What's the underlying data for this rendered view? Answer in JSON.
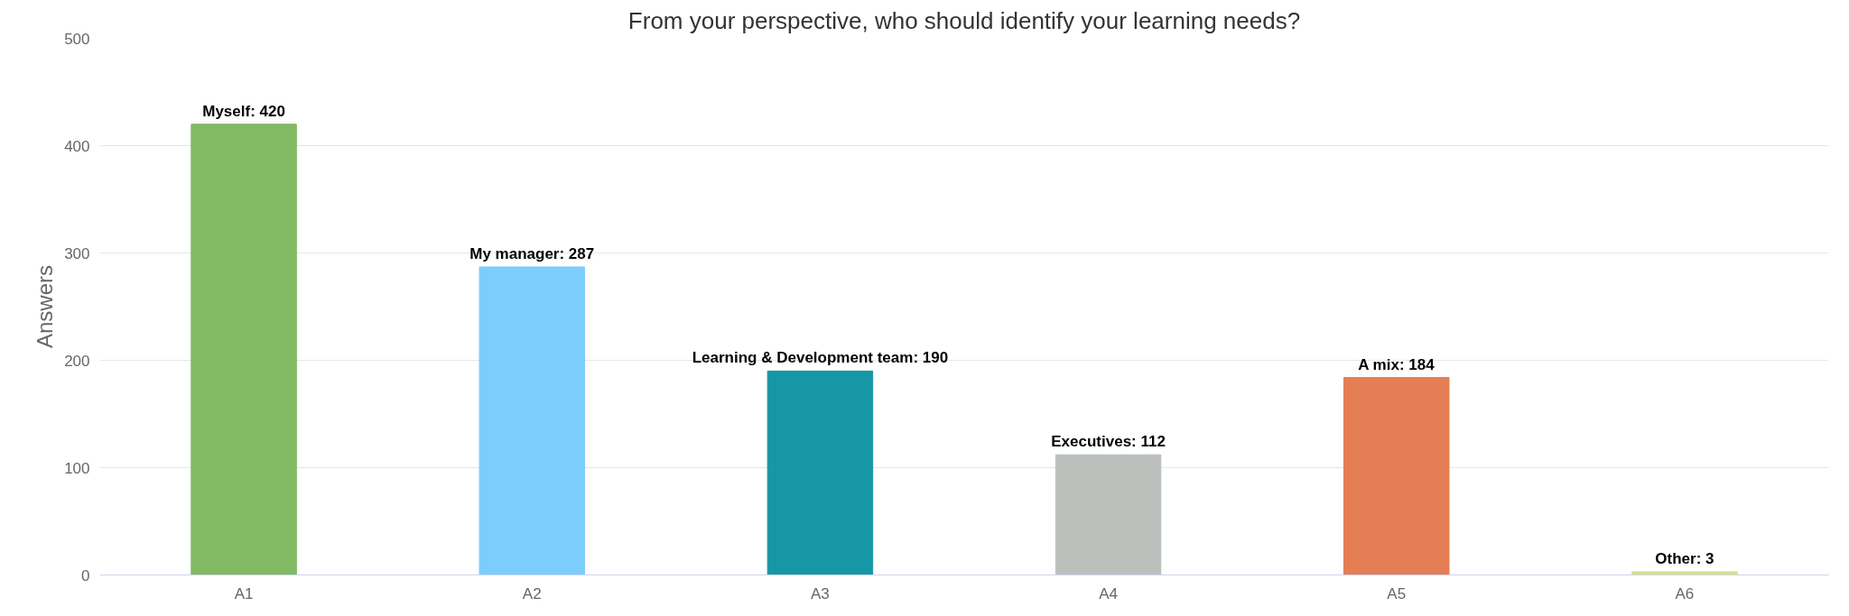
{
  "chart_data": {
    "type": "bar",
    "title": "From your perspective, who should identify your learning needs?",
    "ylabel": "Answers",
    "categories": [
      "A1",
      "A2",
      "A3",
      "A4",
      "A5",
      "A6"
    ],
    "values": [
      420,
      287,
      190,
      112,
      184,
      3
    ],
    "colors": [
      "#82b963",
      "#7ccdfc",
      "#1797a5",
      "#bcc0bc",
      "#e57e54",
      "#d8e08a"
    ],
    "value_labels": [
      "Myself: 420",
      "My manager: 287",
      "Learning & Development team: 190",
      "Executives: 112",
      "A mix: 184",
      "Other: 3"
    ],
    "ylim": [
      0,
      500
    ],
    "yticks": [
      0,
      100,
      200,
      300,
      400,
      500
    ],
    "grid": "y"
  }
}
